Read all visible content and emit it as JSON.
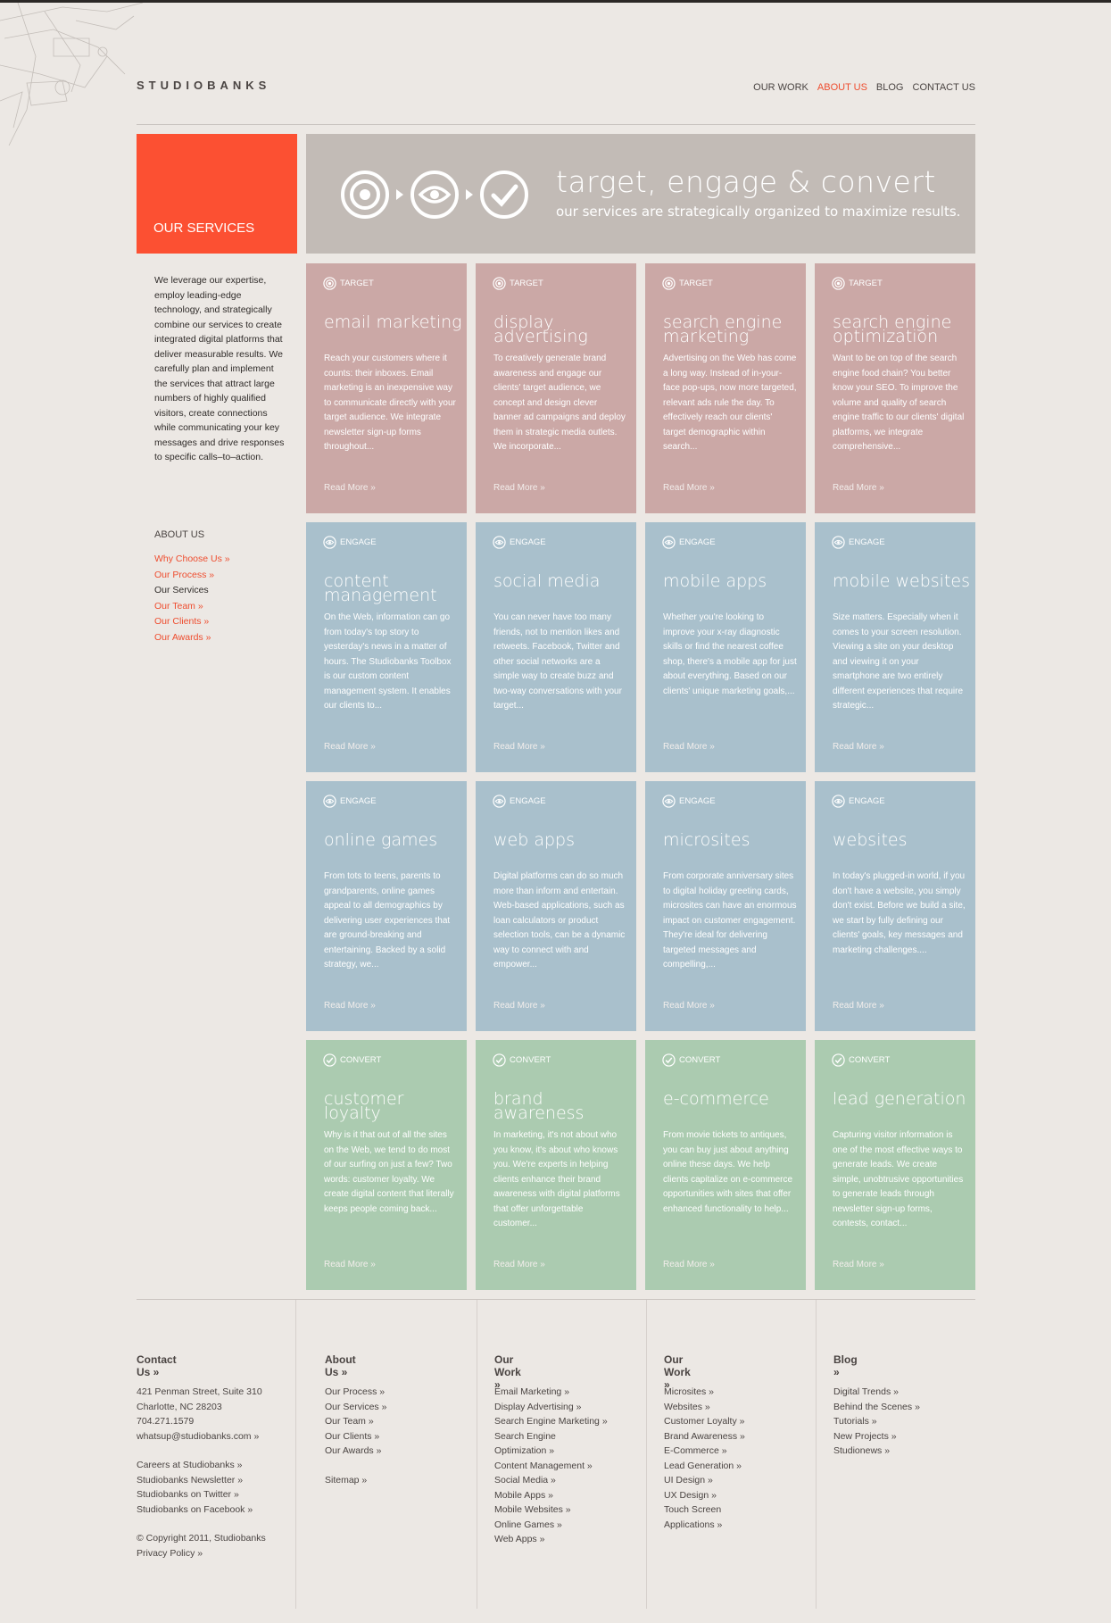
{
  "brand": {
    "logo": "STUDIOBANKS"
  },
  "nav": [
    {
      "label": "OUR WORK",
      "active": false
    },
    {
      "label": "ABOUT US",
      "active": true
    },
    {
      "label": "BLOG",
      "active": false
    },
    {
      "label": "CONTACT US",
      "active": false
    }
  ],
  "sidebar": {
    "title": "OUR SERVICES",
    "intro": "We leverage our expertise, employ leading-edge technology, and strategically combine our services to create integrated digital platforms that deliver measurable results. We carefully plan and implement the services that attract large numbers of highly qualified visitors, create connections while communicating your key messages and drive responses to specific calls–to–action.",
    "about_title": "ABOUT US",
    "links": [
      {
        "label": "Why Choose Us »",
        "current": false
      },
      {
        "label": "Our Process »",
        "current": false
      },
      {
        "label": "Our Services",
        "current": true
      },
      {
        "label": "Our Team »",
        "current": false
      },
      {
        "label": "Our Clients »",
        "current": false
      },
      {
        "label": "Our Awards »",
        "current": false
      }
    ]
  },
  "banner": {
    "title": "target, engage & convert",
    "subtitle": "our services are strategically organized to maximize results."
  },
  "cards": [
    {
      "tag": "TARGET",
      "kind": "target",
      "title": "email marketing",
      "body": "Reach your customers where it counts: their inboxes. Email marketing is an inexpensive way to communicate directly with your target audience. We integrate newsletter sign-up forms throughout...",
      "more": "Read More »"
    },
    {
      "tag": "TARGET",
      "kind": "target",
      "title": "display advertising",
      "body": "To creatively generate brand awareness and engage our clients' target audience, we concept and design clever banner ad campaigns and deploy them in strategic media outlets. We incorporate...",
      "more": "Read More »"
    },
    {
      "tag": "TARGET",
      "kind": "target",
      "title": "search engine marketing",
      "body": "Advertising on the Web has come a long way. Instead of in-your-face pop-ups, now more targeted, relevant ads rule the day. To effectively reach our clients' target demographic within search...",
      "more": "Read More »"
    },
    {
      "tag": "TARGET",
      "kind": "target",
      "title": "search engine optimization",
      "body": "Want to be on top of the search engine food chain? You better know your SEO. To improve the volume and quality of search engine traffic to our clients' digital platforms, we integrate comprehensive...",
      "more": "Read More »"
    },
    {
      "tag": "ENGAGE",
      "kind": "engage",
      "title": "content management",
      "body": "On the Web, information can go from today's top story to yesterday's news in a matter of hours. The Studiobanks Toolbox is our custom content management system. It enables our clients to...",
      "more": "Read More »"
    },
    {
      "tag": "ENGAGE",
      "kind": "engage",
      "title": "social media",
      "body": "You can never have too many friends, not to mention likes and retweets. Facebook, Twitter and other social networks are a simple way to create buzz and two-way conversations with your target...",
      "more": "Read More »"
    },
    {
      "tag": "ENGAGE",
      "kind": "engage",
      "title": "mobile apps",
      "body": "Whether you're looking to improve your x-ray diagnostic skills or find the nearest coffee shop, there's a mobile app for just about everything. Based on our clients' unique marketing goals,...",
      "more": "Read More »"
    },
    {
      "tag": "ENGAGE",
      "kind": "engage",
      "title": "mobile websites",
      "body": "Size matters. Especially when it comes to your screen resolution. Viewing a site on your desktop and viewing it on your smartphone are two entirely different experiences that require strategic...",
      "more": "Read More »"
    },
    {
      "tag": "ENGAGE",
      "kind": "engage",
      "title": "online games",
      "body": "From tots to teens, parents to grandparents, online games appeal to all demographics by delivering user experiences that are ground-breaking and entertaining. Backed by a solid strategy, we...",
      "more": "Read More »"
    },
    {
      "tag": "ENGAGE",
      "kind": "engage",
      "title": "web apps",
      "body": "Digital platforms can do so much more than inform and entertain. Web-based applications, such as loan calculators or product selection tools, can be a dynamic way to connect with and empower...",
      "more": "Read More »"
    },
    {
      "tag": "ENGAGE",
      "kind": "engage",
      "title": "microsites",
      "body": "From corporate anniversary sites to digital holiday greeting cards, microsites can have an enormous impact on customer engagement. They're ideal for delivering targeted messages and compelling,...",
      "more": "Read More »"
    },
    {
      "tag": "ENGAGE",
      "kind": "engage",
      "title": "websites",
      "body": "In today's plugged-in world, if you don't have a website, you simply don't exist. Before we build a site, we start by fully defining our clients' goals, key messages and marketing challenges....",
      "more": "Read More »"
    },
    {
      "tag": "CONVERT",
      "kind": "convert",
      "title": "customer loyalty",
      "body": "Why is it that out of all the sites on the Web, we tend to do most of our surfing on just a few? Two words: customer loyalty. We create digital content that literally keeps people coming back...",
      "more": "Read More »"
    },
    {
      "tag": "CONVERT",
      "kind": "convert",
      "title": "brand awareness",
      "body": "In marketing, it's not about who you know, it's about who knows you. We're experts in helping clients enhance their brand awareness with digital platforms that offer unforgettable customer...",
      "more": "Read More »"
    },
    {
      "tag": "CONVERT",
      "kind": "convert",
      "title": "e-commerce",
      "body": "From movie tickets to antiques, you can buy just about anything online these days. We help clients capitalize on e-commerce opportunities with sites that offer enhanced functionality to help...",
      "more": "Read More »"
    },
    {
      "tag": "CONVERT",
      "kind": "convert",
      "title": "lead generation",
      "body": "Capturing visitor information is one of the most effective ways to generate leads. We create simple, unobtrusive opportunities to generate leads through newsletter sign-up forms, contests, contact...",
      "more": "Read More »"
    }
  ],
  "footer": {
    "contact": {
      "head": "Contact Us »",
      "lines": [
        "421 Penman Street, Suite 310",
        "Charlotte, NC 28203",
        "704.271.1579",
        "whatsup@studiobanks.com »",
        "",
        "Careers at Studiobanks »",
        "Studiobanks Newsletter »",
        "Studiobanks on Twitter »",
        "Studiobanks on Facebook »",
        "",
        "© Copyright 2011, Studiobanks",
        "Privacy Policy »"
      ]
    },
    "about": {
      "head": "About Us »",
      "lines": [
        "Our Process »",
        "Our Services »",
        "Our Team »",
        "Our Clients »",
        "Our Awards »",
        "",
        "Sitemap »"
      ]
    },
    "work1": {
      "head": "Our Work »",
      "lines": [
        "Email Marketing »",
        "Display Advertising »",
        "Search Engine Marketing »",
        "Search Engine",
        "Optimization »",
        "Content Management »",
        "Social Media »",
        "Mobile Apps »",
        "Mobile Websites »",
        "Online Games »",
        "Web Apps »"
      ]
    },
    "work2": {
      "head": "Our Work »",
      "lines": [
        "Microsites »",
        "Websites »",
        "Customer Loyalty »",
        "Brand Awareness »",
        "E-Commerce »",
        "Lead Generation »",
        "UI Design »",
        "UX Design »",
        "Touch Screen",
        "Applications »"
      ]
    },
    "blog": {
      "head": "Blog »",
      "lines": [
        "Digital Trends »",
        "Behind the Scenes »",
        "Tutorials »",
        "New Projects »",
        "Studionews »"
      ]
    }
  },
  "colors": {
    "accent": "#fc5032",
    "target": "#cba8a6",
    "engage": "#a9c0cc",
    "convert": "#abcbb0",
    "banner": "#c2bbb6"
  }
}
